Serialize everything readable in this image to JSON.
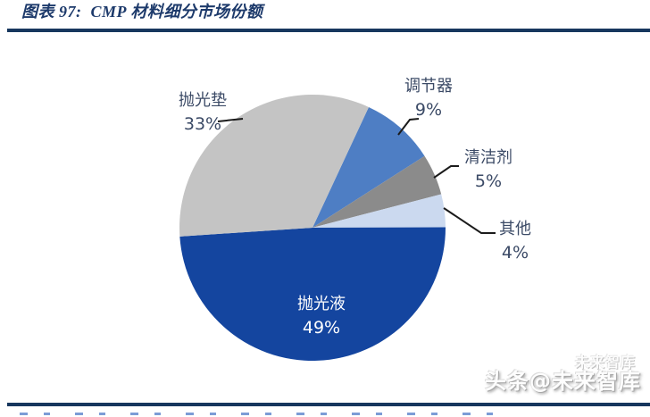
{
  "header": {
    "title": "图表 97:  CMP 材料细分市场份额"
  },
  "chart_data": {
    "type": "pie",
    "title": "CMP 材料细分市场份额",
    "legend_position": "none",
    "labels_style": "outside-callouts-except-largest",
    "start_angle_deg": 25,
    "direction": "clockwise",
    "categories": [
      "调节器",
      "清洁剂",
      "其他",
      "抛光液",
      "抛光垫"
    ],
    "values": [
      9,
      5,
      4,
      49,
      33
    ],
    "segments": [
      {
        "label": "调节器",
        "value": 9,
        "pct": "9%",
        "color": "#4e7ec4"
      },
      {
        "label": "清洁剂",
        "value": 5,
        "pct": "5%",
        "color": "#8b8b8b"
      },
      {
        "label": "其他",
        "value": 4,
        "pct": "4%",
        "color": "#cbd9ef"
      },
      {
        "label": "抛光液",
        "value": 49,
        "pct": "49%",
        "color": "#14459f"
      },
      {
        "label": "抛光垫",
        "value": 33,
        "pct": "33%",
        "color": "#c4c4c4"
      }
    ]
  },
  "colors": {
    "title_navy": "#1d3a6b",
    "rule_navy": "#17375e",
    "label_text": "#3b4a66",
    "leader_line": "#1b1b1b"
  },
  "watermark": {
    "ghost": "未来智库",
    "main": "头条@未来智库"
  }
}
